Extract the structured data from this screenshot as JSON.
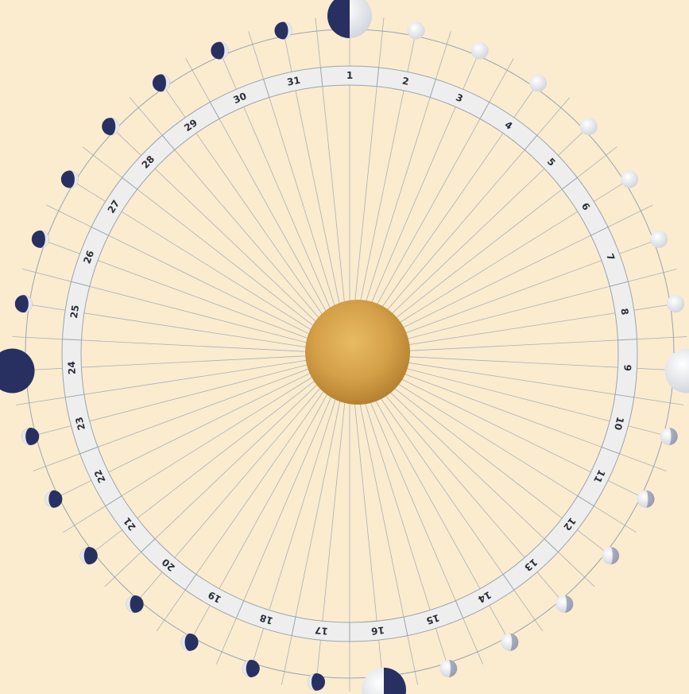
{
  "diagram": {
    "days": [
      "1",
      "2",
      "3",
      "4",
      "5",
      "6",
      "7",
      "8",
      "9",
      "10",
      "11",
      "12",
      "13",
      "14",
      "15",
      "16",
      "17",
      "18",
      "19",
      "20",
      "21",
      "22",
      "23",
      "24",
      "25",
      "26",
      "27",
      "28",
      "29",
      "30",
      "31"
    ],
    "moon_phases": [
      "first-quarter",
      "waxing-gibbous",
      "waxing-gibbous",
      "waxing-gibbous",
      "waxing-gibbous",
      "waxing-gibbous",
      "waxing-gibbous",
      "waxing-gibbous",
      "full",
      "waning-gibbous",
      "waning-gibbous",
      "waning-gibbous",
      "waning-gibbous",
      "waning-gibbous",
      "waning-gibbous",
      "last-quarter",
      "waning-crescent",
      "waning-crescent",
      "waning-crescent",
      "waning-crescent",
      "waning-crescent",
      "waning-crescent",
      "waning-crescent",
      "new",
      "waxing-crescent",
      "waxing-crescent",
      "waxing-crescent",
      "waxing-crescent",
      "waxing-crescent",
      "waxing-crescent",
      "waxing-crescent"
    ],
    "highlighted_phases": [
      "first-quarter",
      "full",
      "last-quarter",
      "new"
    ],
    "center": "sun"
  },
  "colors": {
    "background": "#fbeccf",
    "ring_fill": "#eeeeee",
    "ring_stroke": "#9aa4ae",
    "spoke": "#a9b0b7",
    "moon_dark": "#283061",
    "moon_light": "#e4e6ea",
    "sun_gold": "#d5a24a"
  }
}
